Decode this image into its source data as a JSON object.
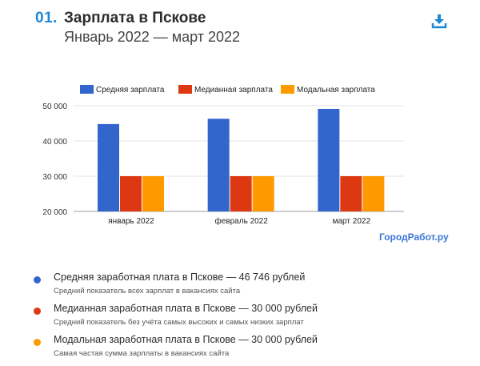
{
  "header": {
    "number": "01.",
    "title": "Зарплата в Пскове",
    "subtitle": "Январь 2022 — март 2022"
  },
  "icons": {
    "download": "download-icon"
  },
  "brand": "ГородРабот.ру",
  "colors": {
    "average": "#3366cc",
    "median": "#dc3912",
    "mode": "#ff9900",
    "accent": "#1e88d8"
  },
  "chart_data": {
    "type": "bar",
    "categories": [
      "январь 2022",
      "февраль 2022",
      "март 2022"
    ],
    "series": [
      {
        "name": "Средняя зарплата",
        "color": "#3366cc",
        "values": [
          44800,
          46300,
          49100
        ]
      },
      {
        "name": "Медианная зарплата",
        "color": "#dc3912",
        "values": [
          30000,
          30000,
          30000
        ]
      },
      {
        "name": "Модальная зарплата",
        "color": "#ff9900",
        "values": [
          30000,
          30000,
          30000
        ]
      }
    ],
    "yticks": [
      "20 000",
      "30 000",
      "40 000",
      "50 000"
    ],
    "ylim": [
      20000,
      50000
    ],
    "grid": true,
    "legend": "top"
  },
  "notes": [
    {
      "title": "Средняя заработная плата в Пскове — 46 746 рублей",
      "desc": "Средний показатель всех зарплат в вакансиях сайта",
      "color": "#3366cc"
    },
    {
      "title": "Медианная заработная плата в Пскове — 30 000 рублей",
      "desc": "Средний показатель без учёта самых высоких и самых низких зарплат",
      "color": "#dc3912"
    },
    {
      "title": "Модальная заработная плата в Пскове — 30 000 рублей",
      "desc": "Самая частая сумма зарплаты в вакансиях сайта",
      "color": "#ff9900"
    }
  ]
}
